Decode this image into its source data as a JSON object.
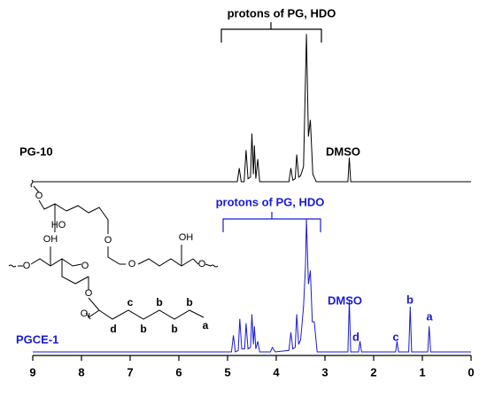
{
  "chart_data": {
    "type": "line",
    "xlim": [
      9,
      0
    ],
    "xticks": [
      9,
      8,
      7,
      6,
      5,
      4,
      3,
      2,
      1,
      0
    ],
    "ylim": [
      0,
      100
    ],
    "series": [
      {
        "name": "PG-10",
        "color": "#000000",
        "x": [
          9.0,
          4.8,
          4.76,
          4.72,
          4.66,
          4.62,
          4.58,
          4.53,
          4.5,
          4.47,
          4.45,
          4.42,
          4.38,
          4.34,
          3.74,
          3.7,
          3.66,
          3.61,
          3.58,
          3.54,
          3.5,
          3.44,
          3.38,
          3.34,
          3.3,
          3.25,
          3.18,
          2.53,
          2.5,
          2.47,
          0
        ],
        "values": [
          0,
          0,
          9,
          0,
          0,
          21,
          2,
          3,
          32,
          5,
          24,
          2,
          15,
          0,
          0,
          9,
          1,
          2,
          18,
          3,
          4,
          10,
          98,
          30,
          41,
          5,
          0,
          0,
          16,
          0,
          0
        ]
      },
      {
        "name": "PGCE-1",
        "color": "#1a1ad6",
        "x": [
          9.0,
          4.92,
          4.88,
          4.84,
          4.78,
          4.75,
          4.71,
          4.65,
          4.62,
          4.58,
          4.53,
          4.5,
          4.47,
          4.45,
          4.42,
          4.38,
          4.34,
          4.12,
          4.08,
          4.02,
          3.74,
          3.7,
          3.66,
          3.61,
          3.58,
          3.54,
          3.5,
          3.44,
          3.4,
          3.38,
          3.34,
          3.3,
          3.26,
          3.22,
          3.16,
          2.53,
          2.5,
          2.47,
          2.31,
          2.28,
          2.25,
          1.55,
          1.52,
          1.49,
          1.28,
          1.25,
          1.22,
          0.89,
          0.86,
          0.83,
          0
        ],
        "values": [
          0,
          0,
          11,
          0,
          1,
          22,
          2,
          2,
          19,
          2,
          3,
          25,
          5,
          17,
          2,
          7,
          0,
          0,
          3,
          0,
          1,
          13,
          2,
          3,
          25,
          5,
          8,
          30,
          57,
          88,
          45,
          54,
          20,
          20,
          0,
          0,
          34,
          0,
          0,
          7,
          0,
          0,
          7,
          0,
          0,
          30,
          0,
          0,
          17,
          0,
          0
        ]
      }
    ],
    "annotations": {
      "top": [
        "protons of PG, HDO",
        "DMSO"
      ],
      "bottom": [
        "protons of PG, HDO",
        "DMSO",
        "d",
        "c",
        "b",
        "a"
      ]
    },
    "structure": {
      "atoms": [
        "O",
        "HO",
        "O",
        "O",
        "OH",
        "O",
        "O",
        "OH",
        "O",
        "O",
        "O"
      ],
      "carbons": [
        "d",
        "c",
        "b",
        "b",
        "b",
        "b",
        "a"
      ]
    }
  }
}
